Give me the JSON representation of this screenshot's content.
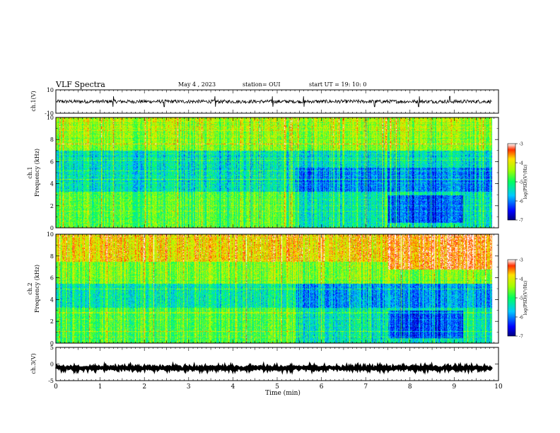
{
  "header": {
    "title": "VLF Spectra",
    "date": "May 4  , 2023",
    "station": "station= OUI",
    "start_ut": "start  UT  =   19: 10: 0"
  },
  "chart_data": [
    {
      "type": "line",
      "panel": "ch1-waveform",
      "ylabel": "ch.1(V)",
      "ylim": [
        -10,
        10
      ],
      "yticks": [
        {
          "v": 10,
          "label": "10"
        },
        {
          "v": -10,
          "label": "-10"
        }
      ],
      "baseline": 0,
      "noise_amplitude": 1.5,
      "spikes_at_min": [
        1.3,
        2.45,
        3.6,
        4.9,
        5.6,
        7.2,
        8.2,
        8.9
      ]
    },
    {
      "type": "heatmap",
      "panel": "ch1-spectrogram",
      "ylabel_line1": "ch.1",
      "ylabel_line2": "Frequency (kHz)",
      "ylim": [
        0,
        10
      ],
      "yticks": [
        "0",
        "2",
        "4",
        "6",
        "8",
        "10"
      ],
      "colorbar": {
        "label": "log(PSD)(V²/Hz)",
        "ticks": [
          "-3",
          "-4",
          "-5",
          "-6",
          "-7"
        ],
        "range": [
          -7,
          -3
        ]
      }
    },
    {
      "type": "heatmap",
      "panel": "ch2-spectrogram",
      "ylabel_line1": "ch.2",
      "ylabel_line2": "Frequency (kHz)",
      "ylim": [
        0,
        10
      ],
      "yticks": [
        "0",
        "2",
        "4",
        "6",
        "8",
        "10"
      ],
      "colorbar": {
        "label": "log(PSD)(V²/Hz)",
        "ticks": [
          "-3",
          "-4",
          "-5",
          "-6",
          "-7"
        ],
        "range": [
          -7,
          -3
        ]
      }
    },
    {
      "type": "line",
      "panel": "ch3-waveform",
      "ylabel": "ch.3(V)",
      "ylim": [
        -5,
        5
      ],
      "yticks": [
        {
          "v": 5,
          "label": "5"
        },
        {
          "v": 0,
          "label": "0"
        },
        {
          "v": -5,
          "label": "-5"
        }
      ],
      "baseline": -1.2,
      "noise_amplitude": 0.4
    }
  ],
  "xaxis": {
    "label": "Time  (min)",
    "ticks": [
      "0",
      "1",
      "2",
      "3",
      "4",
      "5",
      "6",
      "7",
      "8",
      "9",
      "10"
    ],
    "xlim": [
      0,
      10
    ],
    "data_end": 9.85
  }
}
